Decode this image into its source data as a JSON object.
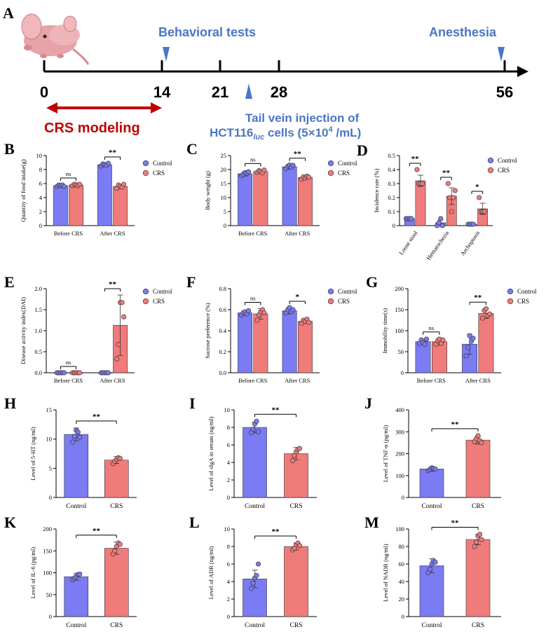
{
  "colors": {
    "control": "#7b7bf3",
    "crs": "#f07b7b",
    "arrow_red": "#c00000",
    "marker_blue": "#4a76c4"
  },
  "panel_a": {
    "letter": "A",
    "events": {
      "behavioral": "Behavioral tests",
      "anesthesia": "Anesthesia"
    },
    "days": [
      "0",
      "14",
      "21",
      "28",
      "56"
    ],
    "modeling": "CRS modeling",
    "injection_line1": "Tail vein injection of",
    "injection_cells_pre": "HCT116",
    "injection_cells_sub": "luc",
    "injection_cells_post": " cells (5×10",
    "injection_exp": "4",
    "injection_unit": " /mL)"
  },
  "legend": {
    "control": "Control",
    "crs": "CRS"
  },
  "chart_data": [
    {
      "letter": "B",
      "type": "bar",
      "ylabel": "Quantity of food intake(g)",
      "ylim": [
        0,
        10
      ],
      "yticks": [
        0,
        2,
        4,
        6,
        8,
        10
      ],
      "categories": [
        "Before CRS",
        "After CRS"
      ],
      "series": [
        {
          "name": "Control",
          "values": [
            5.7,
            8.7
          ],
          "errors": [
            0.1,
            0.2
          ]
        },
        {
          "name": "CRS",
          "values": [
            5.8,
            5.6
          ],
          "errors": [
            0.1,
            0.3
          ]
        }
      ],
      "points": [
        [
          [
            5.6,
            5.8,
            5.7,
            5.8,
            5.6
          ],
          [
            8.5,
            8.8,
            8.7,
            8.6,
            8.9
          ]
        ],
        [
          [
            5.7,
            5.9,
            5.8,
            5.7,
            5.9
          ],
          [
            5.3,
            5.8,
            5.6,
            5.5,
            5.9
          ]
        ]
      ],
      "sig": [
        "ns",
        "**"
      ]
    },
    {
      "letter": "C",
      "type": "bar",
      "ylabel": "Body weight (g)",
      "ylim": [
        0,
        25
      ],
      "yticks": [
        0,
        5,
        10,
        15,
        20,
        25
      ],
      "categories": [
        "Before CRS",
        "After CRS"
      ],
      "series": [
        {
          "name": "Control",
          "values": [
            18.5,
            21.0
          ],
          "errors": [
            0.8,
            0.8
          ]
        },
        {
          "name": "CRS",
          "values": [
            19.3,
            17.2
          ],
          "errors": [
            0.6,
            0.6
          ]
        }
      ],
      "points": [
        [
          [
            17.8,
            18.3,
            18.9,
            18.6,
            19.2
          ],
          [
            20.3,
            21.2,
            21.6,
            20.8,
            21.5
          ]
        ],
        [
          [
            19.0,
            19.6,
            19.3,
            18.8,
            19.8
          ],
          [
            16.6,
            17.4,
            17.0,
            17.6,
            17.3
          ]
        ]
      ],
      "sig": [
        "ns",
        "**"
      ]
    },
    {
      "letter": "D",
      "type": "bar",
      "ylabel": "Incidence rate (%)",
      "ylim": [
        0,
        0.5
      ],
      "yticks": [
        0,
        0.1,
        0.2,
        0.3,
        0.4,
        0.5
      ],
      "categories": [
        "Loose stool",
        "Hematochezia",
        "Archoptosis"
      ],
      "rotate": true,
      "series": [
        {
          "name": "Control",
          "values": [
            0.05,
            0.02,
            0.01
          ],
          "errors": [
            0.005,
            0.02,
            0.005
          ]
        },
        {
          "name": "CRS",
          "values": [
            0.32,
            0.21,
            0.12
          ],
          "errors": [
            0.04,
            0.06,
            0.04
          ]
        }
      ],
      "points": [
        [
          [
            0.05,
            0.05,
            0.05,
            0.05
          ],
          [
            0.0,
            0.02,
            0.05,
            0.0
          ],
          [
            0.01,
            0.01,
            0.01,
            0.01
          ]
        ],
        [
          [
            0.4,
            0.3,
            0.3,
            0.3
          ],
          [
            0.3,
            0.2,
            0.1,
            0.2,
            0.25
          ],
          [
            0.2,
            0.1,
            0.1,
            0.1
          ]
        ]
      ],
      "sig": [
        "**",
        "**",
        "*"
      ]
    },
    {
      "letter": "E",
      "type": "bar",
      "ylabel": "Disease activity index(DAI)",
      "ylim": [
        0,
        2.0
      ],
      "yticks": [
        0.0,
        0.5,
        1.0,
        1.5,
        2.0
      ],
      "decimals": 1,
      "categories": [
        "Before CRS",
        "After CRS"
      ],
      "series": [
        {
          "name": "Control",
          "values": [
            0,
            0
          ],
          "errors": [
            0,
            0
          ]
        },
        {
          "name": "CRS",
          "values": [
            0,
            1.13
          ],
          "errors": [
            0,
            0.72
          ]
        }
      ],
      "points": [
        [
          [
            0,
            0,
            0,
            0,
            0
          ],
          [
            0,
            0,
            0,
            0,
            0
          ]
        ],
        [
          [
            0,
            0,
            0,
            0,
            0
          ],
          [
            0.33,
            0.67,
            1.67,
            1.67,
            1.33
          ]
        ]
      ],
      "sig": [
        "ns",
        "**"
      ]
    },
    {
      "letter": "F",
      "type": "bar",
      "ylabel": "Sucrose preference (%)",
      "ylim": [
        0,
        0.8
      ],
      "yticks": [
        0.0,
        0.2,
        0.4,
        0.6,
        0.8
      ],
      "decimals": 1,
      "categories": [
        "Before CRS",
        "After CRS"
      ],
      "series": [
        {
          "name": "Control",
          "values": [
            0.57,
            0.59
          ],
          "errors": [
            0.02,
            0.03
          ]
        },
        {
          "name": "CRS",
          "values": [
            0.56,
            0.49
          ],
          "errors": [
            0.05,
            0.02
          ]
        }
      ],
      "points": [
        [
          [
            0.55,
            0.57,
            0.58,
            0.56,
            0.59
          ],
          [
            0.57,
            0.6,
            0.62,
            0.58,
            0.6
          ]
        ],
        [
          [
            0.5,
            0.55,
            0.58,
            0.6,
            0.57
          ],
          [
            0.47,
            0.5,
            0.49,
            0.51,
            0.48
          ]
        ]
      ],
      "sig": [
        "ns",
        "*"
      ]
    },
    {
      "letter": "G",
      "type": "bar",
      "ylabel": "Immobility time(s)",
      "ylim": [
        0,
        200
      ],
      "yticks": [
        0,
        50,
        100,
        150,
        200
      ],
      "categories": [
        "Before CRS",
        "After CRS"
      ],
      "series": [
        {
          "name": "Control",
          "values": [
            74,
            68
          ],
          "errors": [
            6,
            24
          ]
        },
        {
          "name": "CRS",
          "values": [
            74,
            141
          ],
          "errors": [
            8,
            12
          ]
        }
      ],
      "points": [
        [
          [
            70,
            78,
            72,
            68,
            80
          ],
          [
            40,
            60,
            88,
            75,
            82
          ]
        ],
        [
          [
            68,
            76,
            80,
            70,
            78
          ],
          [
            130,
            148,
            152,
            136,
            140
          ]
        ]
      ],
      "sig": [
        "ns",
        "**"
      ]
    },
    {
      "letter": "H",
      "type": "simple",
      "ylabel": "Level of 5-HT (ng/ml)",
      "ylim": [
        0,
        15
      ],
      "yticks": [
        0,
        5,
        10,
        15
      ],
      "categories": [
        "Control",
        "CRS"
      ],
      "values": [
        10.8,
        6.4
      ],
      "errors": [
        1.1,
        0.6
      ],
      "points": [
        [
          9.5,
          10.5,
          11.5,
          11.2,
          10.3
        ],
        [
          5.8,
          6.2,
          6.5,
          6.8,
          6.7
        ]
      ],
      "sig": "**"
    },
    {
      "letter": "I",
      "type": "simple",
      "ylabel": "Level of sIgA in serum (ng/ml)",
      "ylim": [
        0,
        10
      ],
      "yticks": [
        0,
        2,
        4,
        6,
        8,
        10
      ],
      "categories": [
        "Control",
        "CRS"
      ],
      "values": [
        8.0,
        5.0
      ],
      "errors": [
        0.6,
        0.7
      ],
      "points": [
        [
          7.4,
          7.8,
          8.4,
          8.7,
          7.5
        ],
        [
          4.2,
          4.8,
          5.2,
          5.5,
          5.6
        ]
      ],
      "sig": "**"
    },
    {
      "letter": "J",
      "type": "simple",
      "ylabel": "Level of TNF-α (pg/ml)",
      "ylim": [
        0,
        400
      ],
      "yticks": [
        0,
        100,
        200,
        300,
        400
      ],
      "categories": [
        "Control",
        "CRS"
      ],
      "values": [
        130,
        262
      ],
      "errors": [
        10,
        18
      ],
      "points": [
        [
          122,
          128,
          135,
          132,
          130
        ],
        [
          255,
          268,
          282,
          260,
          250
        ]
      ],
      "sig": "**"
    },
    {
      "letter": "K",
      "type": "simple",
      "ylabel": "Level of IL-6 (pg/ml)",
      "ylim": [
        0,
        200
      ],
      "yticks": [
        0,
        50,
        100,
        150,
        200
      ],
      "categories": [
        "Control",
        "CRS"
      ],
      "values": [
        91,
        156
      ],
      "errors": [
        8,
        14
      ],
      "points": [
        [
          84,
          88,
          92,
          96,
          97
        ],
        [
          143,
          150,
          160,
          168,
          165
        ]
      ],
      "sig": "**"
    },
    {
      "letter": "L",
      "type": "simple",
      "ylabel": "Level of ADR (ng/ml)",
      "ylim": [
        0,
        10
      ],
      "yticks": [
        0,
        2,
        4,
        6,
        8,
        10
      ],
      "categories": [
        "Control",
        "CRS"
      ],
      "values": [
        4.3,
        8.0
      ],
      "errors": [
        1.0,
        0.4
      ],
      "points": [
        [
          3.2,
          3.8,
          4.4,
          4.7,
          6.0
        ],
        [
          7.6,
          7.8,
          8.2,
          8.4,
          8.1
        ]
      ],
      "sig": "**"
    },
    {
      "letter": "M",
      "type": "simple",
      "ylabel": "Level of NADR (ng/ml)",
      "ylim": [
        0,
        100
      ],
      "yticks": [
        0,
        20,
        40,
        60,
        80,
        100
      ],
      "categories": [
        "Control",
        "CRS"
      ],
      "values": [
        58,
        88
      ],
      "errors": [
        8,
        6
      ],
      "points": [
        [
          50,
          54,
          60,
          64,
          62
        ],
        [
          80,
          85,
          92,
          94,
          88
        ]
      ],
      "sig": "**"
    }
  ]
}
